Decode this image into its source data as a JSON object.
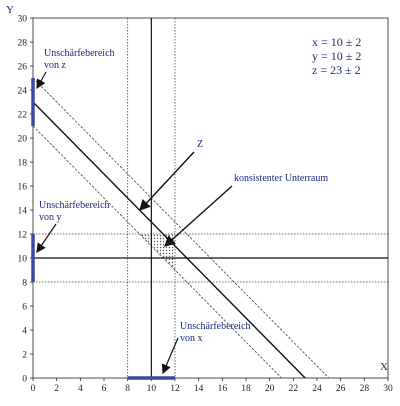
{
  "chart_data": {
    "type": "line",
    "xlabel": "X",
    "ylabel": "Y",
    "xlim": [
      0,
      30
    ],
    "ylim": [
      0,
      30
    ],
    "x_ticks": [
      0,
      2,
      4,
      6,
      8,
      10,
      12,
      14,
      16,
      18,
      20,
      22,
      24,
      26,
      28,
      30
    ],
    "y_ticks": [
      0,
      2,
      4,
      6,
      8,
      10,
      12,
      14,
      16,
      18,
      20,
      22,
      24,
      26,
      28,
      30
    ],
    "values_text": [
      "x = 10 ± 2",
      "y = 10 ± 2",
      "z = 23 ± 2"
    ],
    "x_center": 10,
    "x_bounds": [
      8,
      12
    ],
    "y_center": 10,
    "y_bounds": [
      8,
      12
    ],
    "z_center": 23,
    "z_bounds": [
      21,
      25
    ],
    "annotations": {
      "z_range": [
        "Unschärfebereich",
        "von z"
      ],
      "y_range": [
        "Unschärfebereich",
        "von y"
      ],
      "x_range": [
        "Unschärfebereich",
        "von x"
      ],
      "z_line": "Z",
      "consistent": "konsistenter Unterraum"
    },
    "colors": {
      "axis": "#111111",
      "range": "#3b4aa0",
      "text": "#1b2a7a"
    }
  }
}
